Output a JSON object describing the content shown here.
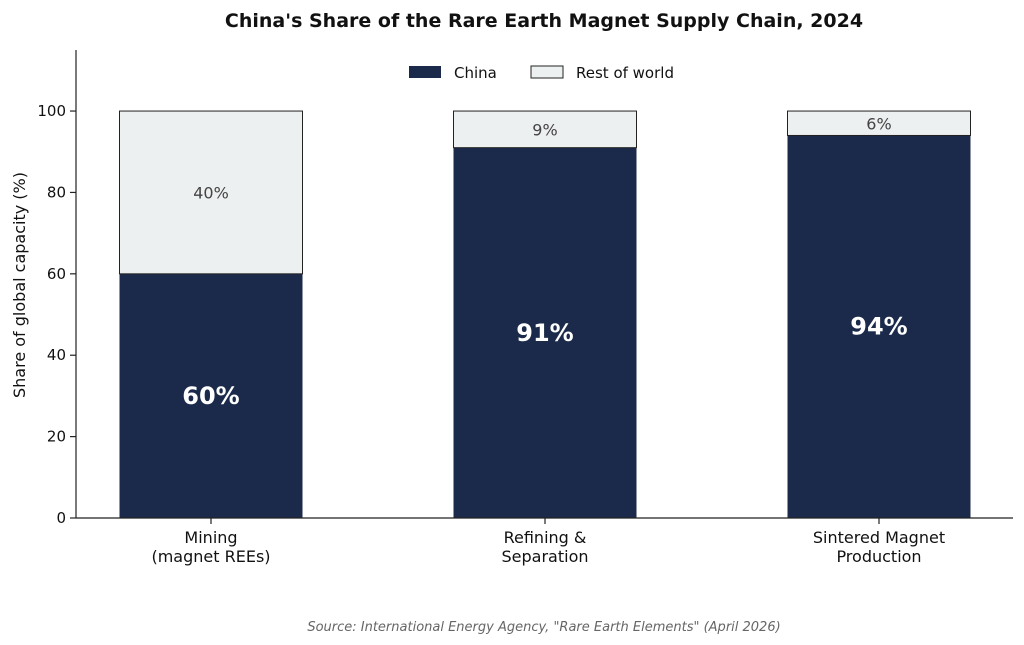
{
  "chart_data": {
    "type": "bar",
    "stacked": true,
    "title": "China's Share of the Rare Earth Magnet Supply Chain, 2024",
    "ylabel": "Share of global capacity (%)",
    "xlabel": "",
    "ylim": [
      0,
      115
    ],
    "yticks": [
      0,
      20,
      40,
      60,
      80,
      100
    ],
    "categories": [
      [
        "Mining",
        "(magnet REEs)"
      ],
      [
        "Refining &",
        "Separation"
      ],
      [
        "Sintered Magnet",
        "Production"
      ]
    ],
    "series": [
      {
        "name": "China",
        "color": "#1b2a4a",
        "values": [
          60,
          91,
          94
        ],
        "labels": [
          "60%",
          "91%",
          "94%"
        ]
      },
      {
        "name": "Rest of world",
        "color": "#edf0f0",
        "values": [
          40,
          9,
          6
        ],
        "labels": [
          "40%",
          "9%",
          "6%"
        ]
      }
    ],
    "legend": "top-center",
    "grid": false,
    "source": "Source: International Energy Agency, \"Rare Earth Elements\" (April 2026)"
  }
}
